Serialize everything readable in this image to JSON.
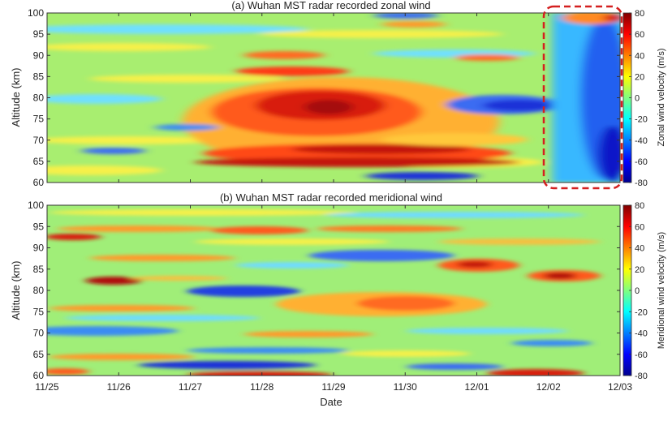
{
  "chart_data": [
    {
      "type": "heatmap",
      "title": "(a) Wuhan MST radar recorded zonal wind",
      "xlabel": "",
      "ylabel": "Altitude (km)",
      "x_ticks": [
        "11/25",
        "11/26",
        "11/27",
        "11/28",
        "11/29",
        "11/30",
        "12/01",
        "12/02",
        "12/03"
      ],
      "y_ticks": [
        60,
        65,
        70,
        75,
        80,
        85,
        90,
        95,
        100
      ],
      "ylim": [
        60,
        100
      ],
      "colorbar": {
        "label": "Zonal wind velocity (m/s)",
        "range": [
          -80,
          80
        ],
        "ticks": [
          80,
          60,
          40,
          20,
          0,
          -20,
          -40,
          -60,
          -80
        ]
      },
      "highlight": "dashed red box over 12/02 to 12/03, 60-100 km",
      "features": [
        {
          "x": "11/28-11/29",
          "y": 76,
          "value": 75
        },
        {
          "x": "11/28-11/30",
          "y": 66,
          "value": 65
        },
        {
          "x": "11/28",
          "y": 86,
          "value": 55
        },
        {
          "x": "12/01",
          "y": 78,
          "value": -40
        },
        {
          "x": "12/03",
          "y": 70,
          "value": -70
        }
      ]
    },
    {
      "type": "heatmap",
      "title": "(b) Wuhan MST radar recorded meridional wind",
      "xlabel": "Date",
      "ylabel": "Altitude (km)",
      "x_ticks": [
        "11/25",
        "11/26",
        "11/27",
        "11/28",
        "11/29",
        "11/30",
        "12/01",
        "12/02",
        "12/03"
      ],
      "y_ticks": [
        60,
        65,
        70,
        75,
        80,
        85,
        90,
        95,
        100
      ],
      "ylim": [
        60,
        100
      ],
      "colorbar": {
        "label": "Meridional wind velocity (m/s)",
        "range": [
          -80,
          80
        ],
        "ticks": [
          80,
          60,
          40,
          20,
          0,
          -20,
          -40,
          -60,
          -80
        ]
      },
      "features": [
        {
          "x": "11/26",
          "y": 82,
          "value": 70
        },
        {
          "x": "11/30",
          "y": 77,
          "value": 45
        },
        {
          "x": "12/01",
          "y": 84,
          "value": 55
        },
        {
          "x": "12/02",
          "y": 83,
          "value": 65
        },
        {
          "x": "11/27",
          "y": 63,
          "value": -55
        },
        {
          "x": "11/28",
          "y": 79,
          "value": -55
        },
        {
          "x": "11/30",
          "y": 88,
          "value": -45
        }
      ]
    }
  ]
}
